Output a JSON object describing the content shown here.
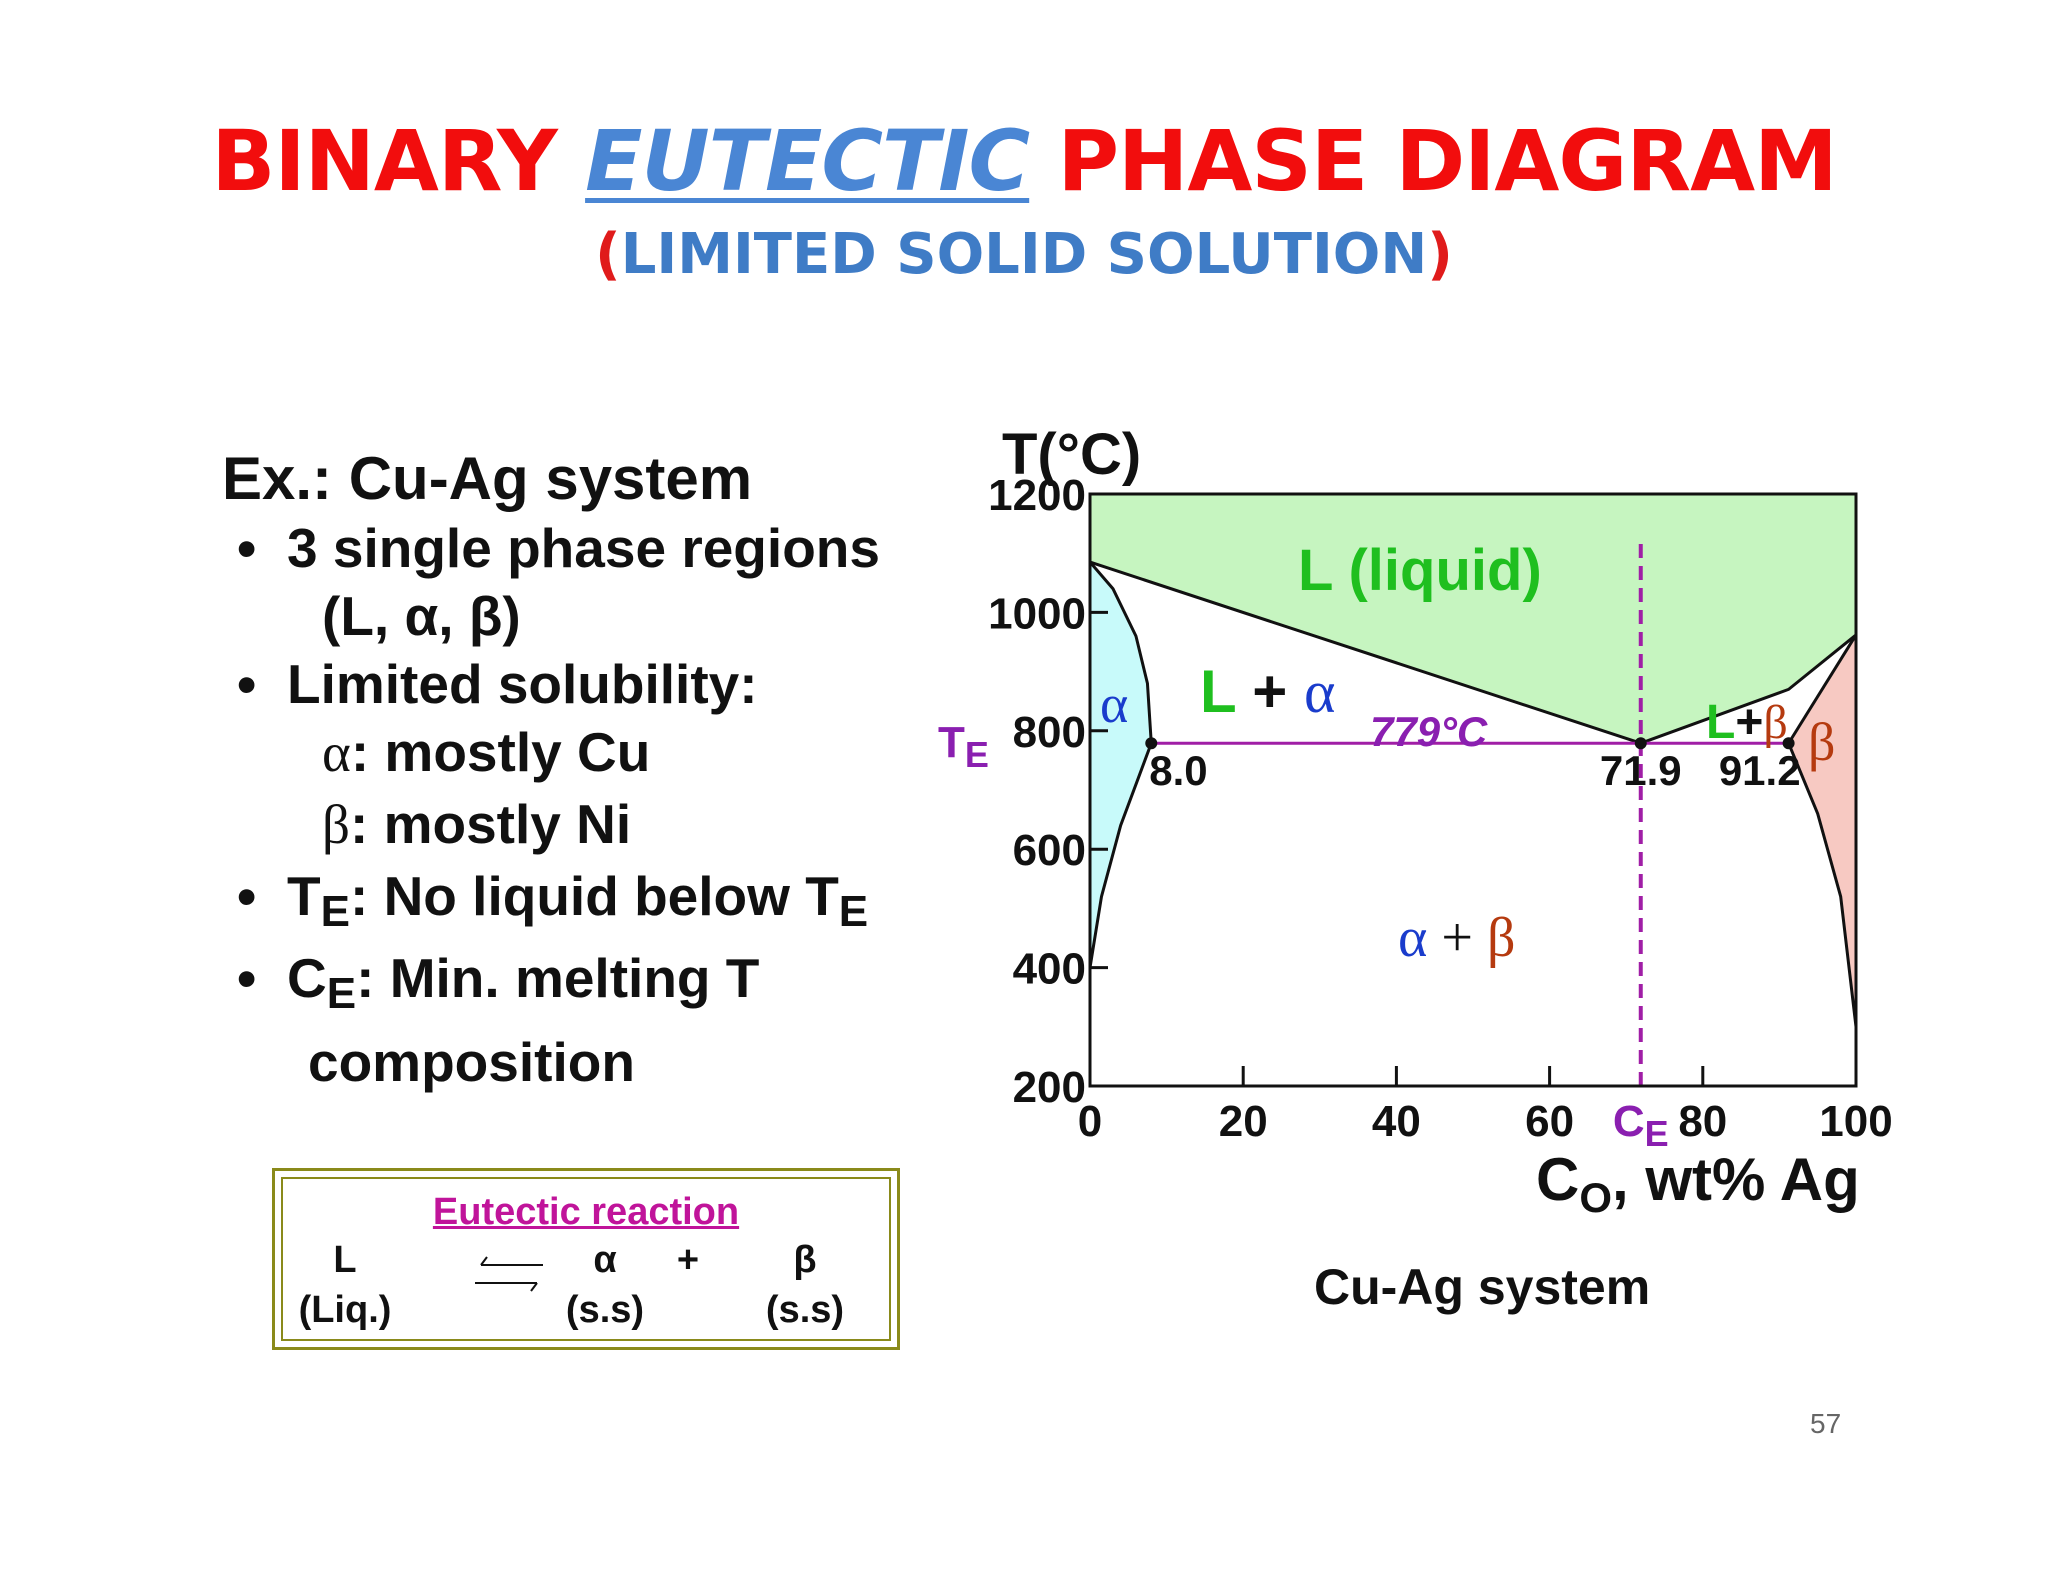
{
  "title": {
    "part1": "BINARY ",
    "part2": "EUTECTIC",
    "part3": " PHASE DIAGRAM"
  },
  "subtitle": {
    "open": "(",
    "text": "LIMITED SOLID SOLUTION",
    "close": ")"
  },
  "left_panel": {
    "heading": "Ex.:  Cu-Ag system",
    "bullet_symbol": "•",
    "b1_line1": "3 single phase regions",
    "b1_line2": "(L, α, β)",
    "b2_line1": "Limited solubility:",
    "b2_alpha_sym": "α",
    "b2_alpha_text": ":  mostly Cu",
    "b2_beta_sym": "β",
    "b2_beta_text": ":  mostly Ni",
    "b3_T": "T",
    "b3_E": "E",
    "b3_text": ":  No liquid below T",
    "b3_E2": "E",
    "b4_C": "C",
    "b4_E": "E",
    "b4_text": ":  Min. melting T",
    "b4_line2": "composition"
  },
  "reaction": {
    "title": "Eutectic reaction",
    "L": "L",
    "L_sub": "(Liq.)",
    "alpha": "α",
    "alpha_sub": "(s.s)",
    "plus": "+",
    "beta": "β",
    "beta_sub": "(s.s)"
  },
  "chart_data": {
    "type": "phase-diagram",
    "ylabel": "T(°C)",
    "xlabel_C": "C",
    "xlabel_O": "O",
    "xlabel_rest": ", wt% Ag",
    "xlim": [
      0,
      100
    ],
    "ylim": [
      200,
      1200
    ],
    "x_ticks": [
      "0",
      "20",
      "40",
      "60",
      "80",
      "100"
    ],
    "y_ticks": [
      "200",
      "400",
      "600",
      "800",
      "1000",
      "1200"
    ],
    "eutectic_temperature_label": "779°C",
    "eutectic_temperature": 779,
    "eutectic_points": [
      {
        "x": 8.0,
        "label": "8.0"
      },
      {
        "x": 71.9,
        "label": "71.9"
      },
      {
        "x": 91.2,
        "label": "91.2"
      }
    ],
    "TE_T": "T",
    "TE_E": "E",
    "CE_C": "C",
    "CE_E": "E",
    "regions": {
      "liquid": "L (liquid)",
      "alpha": "α",
      "L_alpha_L": "L",
      "L_alpha_plus": " + ",
      "L_alpha_alpha": "α",
      "L_beta_L": "L",
      "L_beta_plus": "+",
      "L_beta_beta": "β",
      "beta": "β",
      "ab_alpha": "α",
      "ab_plus": " + ",
      "ab_beta": "β"
    },
    "curves": {
      "liquidus_left": [
        [
          0,
          1085
        ],
        [
          71.9,
          779
        ]
      ],
      "liquidus_right": [
        [
          71.9,
          779
        ],
        [
          91.2,
          870
        ],
        [
          100,
          962
        ]
      ],
      "solidus_alpha": [
        [
          0,
          1085
        ],
        [
          3,
          1040
        ],
        [
          6,
          960
        ],
        [
          7.5,
          880
        ],
        [
          8.0,
          779
        ]
      ],
      "solvus_alpha": [
        [
          8.0,
          779
        ],
        [
          4,
          640
        ],
        [
          1.5,
          520
        ],
        [
          0,
          400
        ]
      ],
      "solidus_beta": [
        [
          100,
          962
        ],
        [
          91.2,
          779
        ]
      ],
      "solvus_beta": [
        [
          91.2,
          779
        ],
        [
          95,
          660
        ],
        [
          98,
          520
        ],
        [
          100,
          300
        ]
      ]
    },
    "colors": {
      "liquid": "#c6f5c0",
      "alpha": "#c8fafa",
      "beta": "#f7c9c2",
      "eutectic_line": "#a01ea6",
      "green_text": "#1fbf1f",
      "alpha_text": "#1a3ccc",
      "beta_text": "#b53a0f",
      "purple_text": "#8a1fb0"
    }
  },
  "caption": "Cu-Ag system",
  "page_number": "57"
}
